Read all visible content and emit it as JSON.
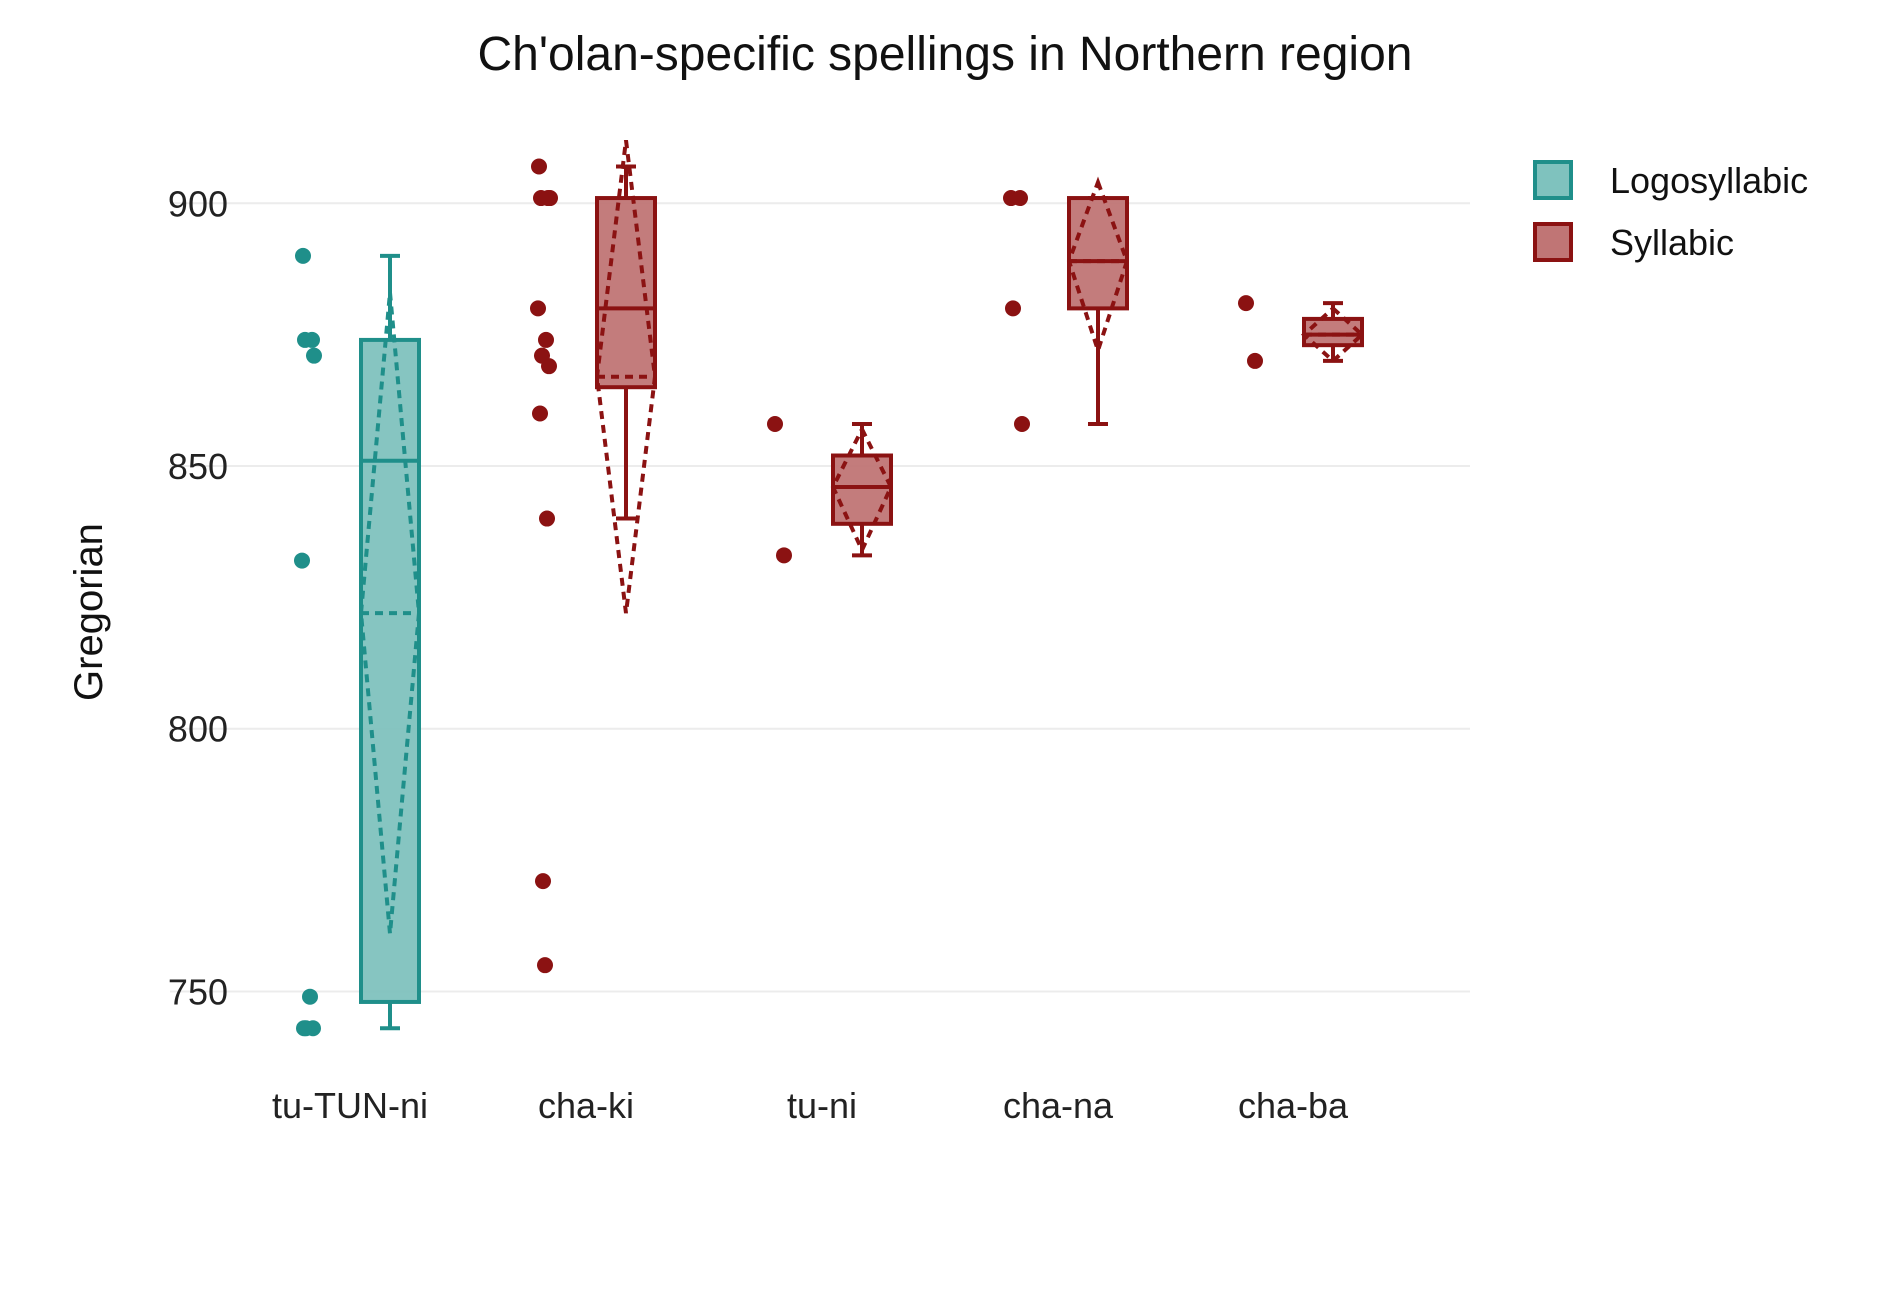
{
  "chart_data": {
    "type": "box",
    "title": "Ch'olan-specific spellings in Northern region",
    "xlabel": "",
    "ylabel": "Gregorian",
    "ylim": [
      736,
      913
    ],
    "yticks": [
      750,
      800,
      850,
      900
    ],
    "grid": "horizontal",
    "legend_position": "top-right",
    "colors": {
      "Logosyllabic": "#1f8f8a",
      "Syllabic": "#8b1212"
    },
    "series": [
      {
        "name": "Logosyllabic",
        "fill": "#7fc2be",
        "stroke": "#1f8f8a"
      },
      {
        "name": "Syllabic",
        "fill": "#c07575",
        "stroke": "#8b1212"
      }
    ],
    "categories": [
      "tu-TUN-ni",
      "cha-ki",
      "tu-ni",
      "cha-na",
      "cha-ba"
    ],
    "boxes": [
      {
        "category": "tu-TUN-ni",
        "series": "Logosyllabic",
        "min": 743,
        "q1": 748,
        "median": 851,
        "q3": 874,
        "max": 890,
        "mean": 822,
        "mean_minus_sd": 761,
        "mean_plus_sd": 883,
        "points": [
          890,
          874,
          874,
          871,
          832,
          749,
          743,
          743,
          743
        ]
      },
      {
        "category": "cha-ki",
        "series": "Syllabic",
        "min": 840,
        "q1": 865,
        "median": 880,
        "q3": 901,
        "max": 907,
        "mean": 867,
        "mean_minus_sd": 822,
        "mean_plus_sd": 912,
        "points": [
          907,
          901,
          901,
          901,
          880,
          874,
          871,
          869,
          860,
          840,
          771,
          755
        ]
      },
      {
        "category": "tu-ni",
        "series": "Syllabic",
        "min": 833,
        "q1": 839,
        "median": 846,
        "q3": 852,
        "max": 858,
        "mean": 846,
        "mean_minus_sd": 834,
        "mean_plus_sd": 857,
        "points": [
          858,
          833
        ]
      },
      {
        "category": "cha-na",
        "series": "Syllabic",
        "min": 858,
        "q1": 880,
        "median": 889,
        "q3": 901,
        "max": 901,
        "mean": 889,
        "mean_minus_sd": 872,
        "mean_plus_sd": 904,
        "points": [
          901,
          901,
          880,
          858
        ]
      },
      {
        "category": "cha-ba",
        "series": "Syllabic",
        "min": 870,
        "q1": 873,
        "median": 875,
        "q3": 878,
        "max": 881,
        "mean": 875,
        "mean_minus_sd": 870,
        "mean_plus_sd": 880,
        "points": [
          881,
          870
        ]
      }
    ]
  }
}
